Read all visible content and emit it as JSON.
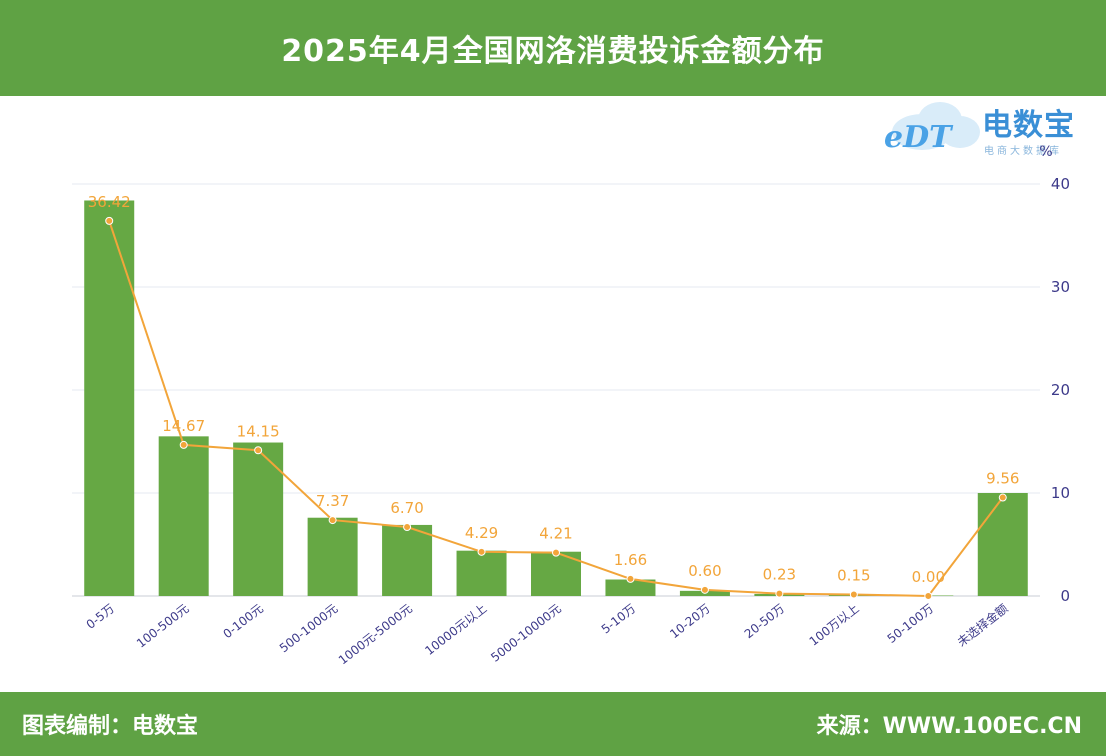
{
  "header": {
    "title": "2025年4月全国网洛消费投诉金额分布"
  },
  "logo": {
    "brand": "电数宝",
    "mark": "eDT",
    "tagline": "电商大数据库"
  },
  "footer": {
    "credit": "图表编制：电数宝",
    "source": "来源：WWW.100EC.CN"
  },
  "colors": {
    "bar": "#66a844",
    "line": "#f2a53a",
    "header": "#5fa244",
    "axis_text": "#3d3a8a",
    "grid": "#e6e9f0"
  },
  "chart_data": {
    "type": "bar",
    "title": "2025年4月全国网洛消费投诉金额分布",
    "ylabel": "%",
    "ylim": [
      0,
      40
    ],
    "yticks": [
      0,
      10,
      20,
      30,
      40
    ],
    "y_axis_side": "right",
    "grid": true,
    "categories": [
      "0-5万",
      "100-500元",
      "0-100元",
      "500-1000元",
      "1000元-5000元",
      "10000元以上",
      "5000-10000元",
      "5-10万",
      "10-20万",
      "20-50万",
      "100万以上",
      "50-100万",
      "未选择金额"
    ],
    "series": [
      {
        "name": "bar",
        "type": "bar",
        "values": [
          38.4,
          15.5,
          14.9,
          7.6,
          6.9,
          4.4,
          4.3,
          1.6,
          0.5,
          0.2,
          0.15,
          0.05,
          10.0
        ]
      },
      {
        "name": "line",
        "type": "line",
        "values": [
          36.42,
          14.67,
          14.15,
          7.37,
          6.7,
          4.29,
          4.21,
          1.66,
          0.6,
          0.23,
          0.15,
          0.0,
          9.56
        ],
        "labels": [
          "36.42",
          "14.67",
          "14.15",
          "7.37",
          "6.70",
          "4.29",
          "4.21",
          "1.66",
          "0.60",
          "0.23",
          "0.15",
          "0.00",
          "9.56"
        ]
      }
    ]
  }
}
